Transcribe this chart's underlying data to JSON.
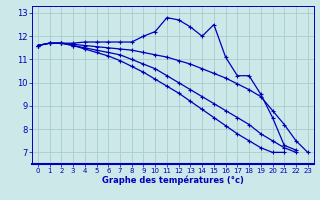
{
  "xlabel": "Graphe des températures (°c)",
  "background_color": "#cce8e8",
  "grid_color": "#aacccc",
  "line_color": "#0000bb",
  "xlim": [
    -0.5,
    23.5
  ],
  "ylim": [
    6.5,
    13.3
  ],
  "yticks": [
    7,
    8,
    9,
    10,
    11,
    12,
    13
  ],
  "xticks": [
    0,
    1,
    2,
    3,
    4,
    5,
    6,
    7,
    8,
    9,
    10,
    11,
    12,
    13,
    14,
    15,
    16,
    17,
    18,
    19,
    20,
    21,
    22,
    23
  ],
  "series": [
    {
      "x": [
        0,
        1,
        2,
        3,
        4,
        5,
        6,
        7,
        8,
        9,
        10,
        11,
        12,
        13,
        14,
        15,
        16,
        17,
        18,
        19,
        20,
        21,
        22
      ],
      "y": [
        11.6,
        11.7,
        11.7,
        11.7,
        11.75,
        11.75,
        11.75,
        11.75,
        11.75,
        12.0,
        12.2,
        12.8,
        12.7,
        12.4,
        12.0,
        12.5,
        11.1,
        10.3,
        10.3,
        9.5,
        8.5,
        7.3,
        7.1
      ]
    },
    {
      "x": [
        0,
        1,
        2,
        3,
        4,
        5,
        6,
        7,
        8,
        9,
        10,
        11,
        12,
        13,
        14,
        15,
        16,
        17,
        18,
        19,
        20,
        21,
        22,
        23
      ],
      "y": [
        11.6,
        11.7,
        11.7,
        11.65,
        11.6,
        11.55,
        11.5,
        11.45,
        11.4,
        11.3,
        11.2,
        11.1,
        10.95,
        10.8,
        10.6,
        10.4,
        10.2,
        9.95,
        9.7,
        9.4,
        8.8,
        8.2,
        7.5,
        7.0
      ]
    },
    {
      "x": [
        0,
        1,
        2,
        3,
        4,
        5,
        6,
        7,
        8,
        9,
        10,
        11,
        12,
        13,
        14,
        15,
        16,
        17,
        18,
        19,
        20,
        21,
        22
      ],
      "y": [
        11.6,
        11.7,
        11.7,
        11.6,
        11.5,
        11.4,
        11.3,
        11.2,
        11.0,
        10.8,
        10.6,
        10.3,
        10.0,
        9.7,
        9.4,
        9.1,
        8.8,
        8.5,
        8.2,
        7.8,
        7.5,
        7.2,
        7.0
      ]
    },
    {
      "x": [
        0,
        1,
        2,
        3,
        4,
        5,
        6,
        7,
        8,
        9,
        10,
        11,
        12,
        13,
        14,
        15,
        16,
        17,
        18,
        19,
        20,
        21
      ],
      "y": [
        11.6,
        11.7,
        11.7,
        11.6,
        11.45,
        11.3,
        11.15,
        10.95,
        10.7,
        10.45,
        10.15,
        9.85,
        9.55,
        9.2,
        8.85,
        8.5,
        8.15,
        7.8,
        7.5,
        7.2,
        7.0,
        7.0
      ]
    }
  ]
}
